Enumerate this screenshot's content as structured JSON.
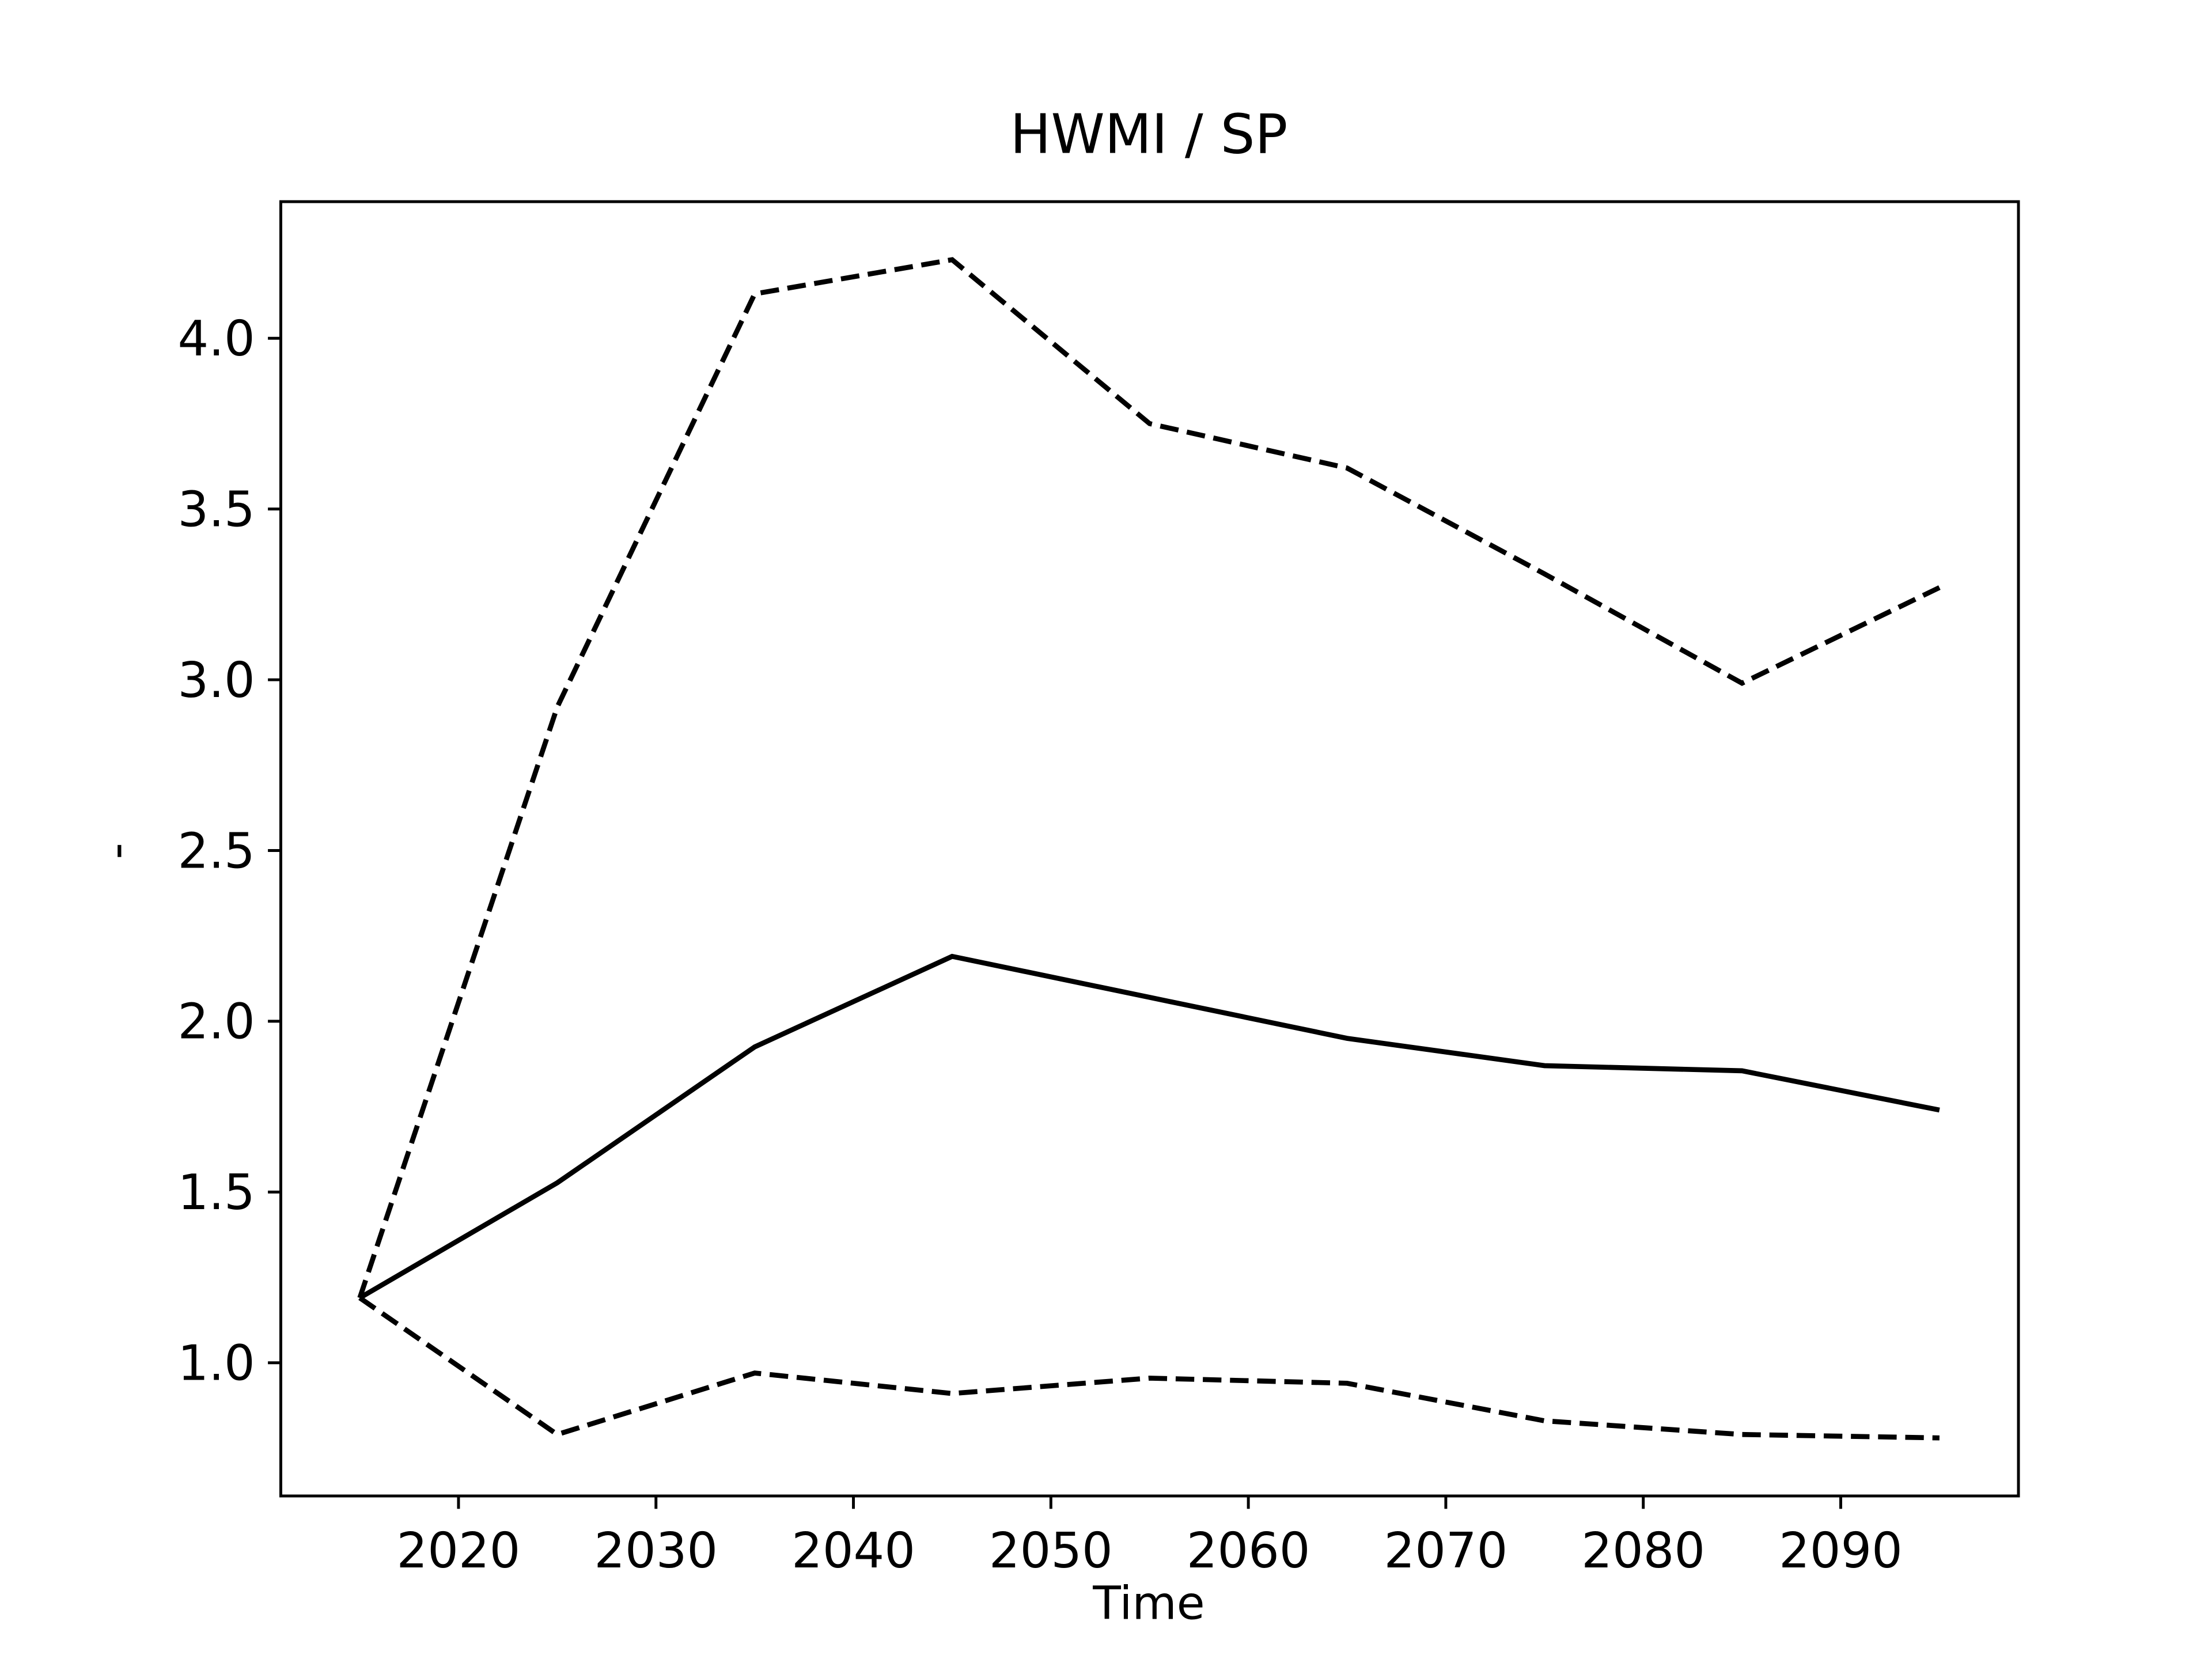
{
  "chart_data": {
    "type": "line",
    "title": "HWMI / SP",
    "x_label": "Time",
    "y_label": "-",
    "x": [
      2015,
      2025,
      2035,
      2045,
      2055,
      2065,
      2075,
      2085,
      2095
    ],
    "series": [
      {
        "color": "#000000",
        "dash": "solid",
        "values": [
          1.19,
          1.527,
          1.925,
          2.19,
          2.07,
          1.95,
          1.87,
          1.855,
          1.74
        ]
      },
      {
        "color": "#000000",
        "dash": "dashed",
        "values": [
          1.19,
          2.92,
          4.13,
          4.23,
          3.75,
          3.62,
          3.31,
          2.99,
          3.27
        ]
      },
      {
        "color": "#000000",
        "dash": "dashed",
        "values": [
          1.19,
          0.79,
          0.97,
          0.91,
          0.955,
          0.94,
          0.83,
          0.79,
          0.78
        ]
      }
    ],
    "xlim": [
      2011,
      2099
    ],
    "xticks": [
      2020,
      2030,
      2040,
      2050,
      2060,
      2070,
      2080,
      2090
    ],
    "ylim": [
      0.61,
      4.4
    ],
    "yticks": [
      {
        "value": 1,
        "label": "1.0"
      },
      {
        "value": 1.5,
        "label": "1.5"
      },
      {
        "value": 2,
        "label": "2.0"
      },
      {
        "value": 2.5,
        "label": "2.5"
      },
      {
        "value": 3,
        "label": "3.0"
      },
      {
        "value": 3.5,
        "label": "3.5"
      },
      {
        "value": 4,
        "label": "4.0"
      }
    ],
    "grid": false
  }
}
